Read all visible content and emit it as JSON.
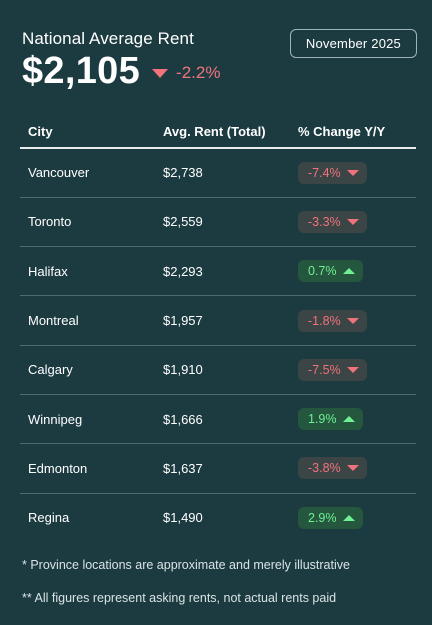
{
  "header": {
    "label": "National Average Rent",
    "value": "$2,105",
    "change": "-2.2%",
    "date": "November 2025"
  },
  "table": {
    "columns": [
      "City",
      "Avg. Rent (Total)",
      "% Change Y/Y"
    ],
    "rows": [
      {
        "city": "Vancouver",
        "rent": "$2,738",
        "change": "-7.4%",
        "direction": "down"
      },
      {
        "city": "Toronto",
        "rent": "$2,559",
        "change": "-3.3%",
        "direction": "down"
      },
      {
        "city": "Halifax",
        "rent": "$2,293",
        "change": "0.7%",
        "direction": "up"
      },
      {
        "city": "Montreal",
        "rent": "$1,957",
        "change": "-1.8%",
        "direction": "down"
      },
      {
        "city": "Calgary",
        "rent": "$1,910",
        "change": "-7.5%",
        "direction": "down"
      },
      {
        "city": "Winnipeg",
        "rent": "$1,666",
        "change": "1.9%",
        "direction": "up"
      },
      {
        "city": "Edmonton",
        "rent": "$1,637",
        "change": "-3.8%",
        "direction": "down"
      },
      {
        "city": "Regina",
        "rent": "$1,490",
        "change": "2.9%",
        "direction": "up"
      }
    ]
  },
  "footnotes": [
    "* Province locations are approximate and merely illustrative",
    "** All figures represent asking rents, not actual rents paid"
  ],
  "colors": {
    "background": "#1c3b41",
    "negative": "#f0737b",
    "positive": "#6ef093"
  }
}
